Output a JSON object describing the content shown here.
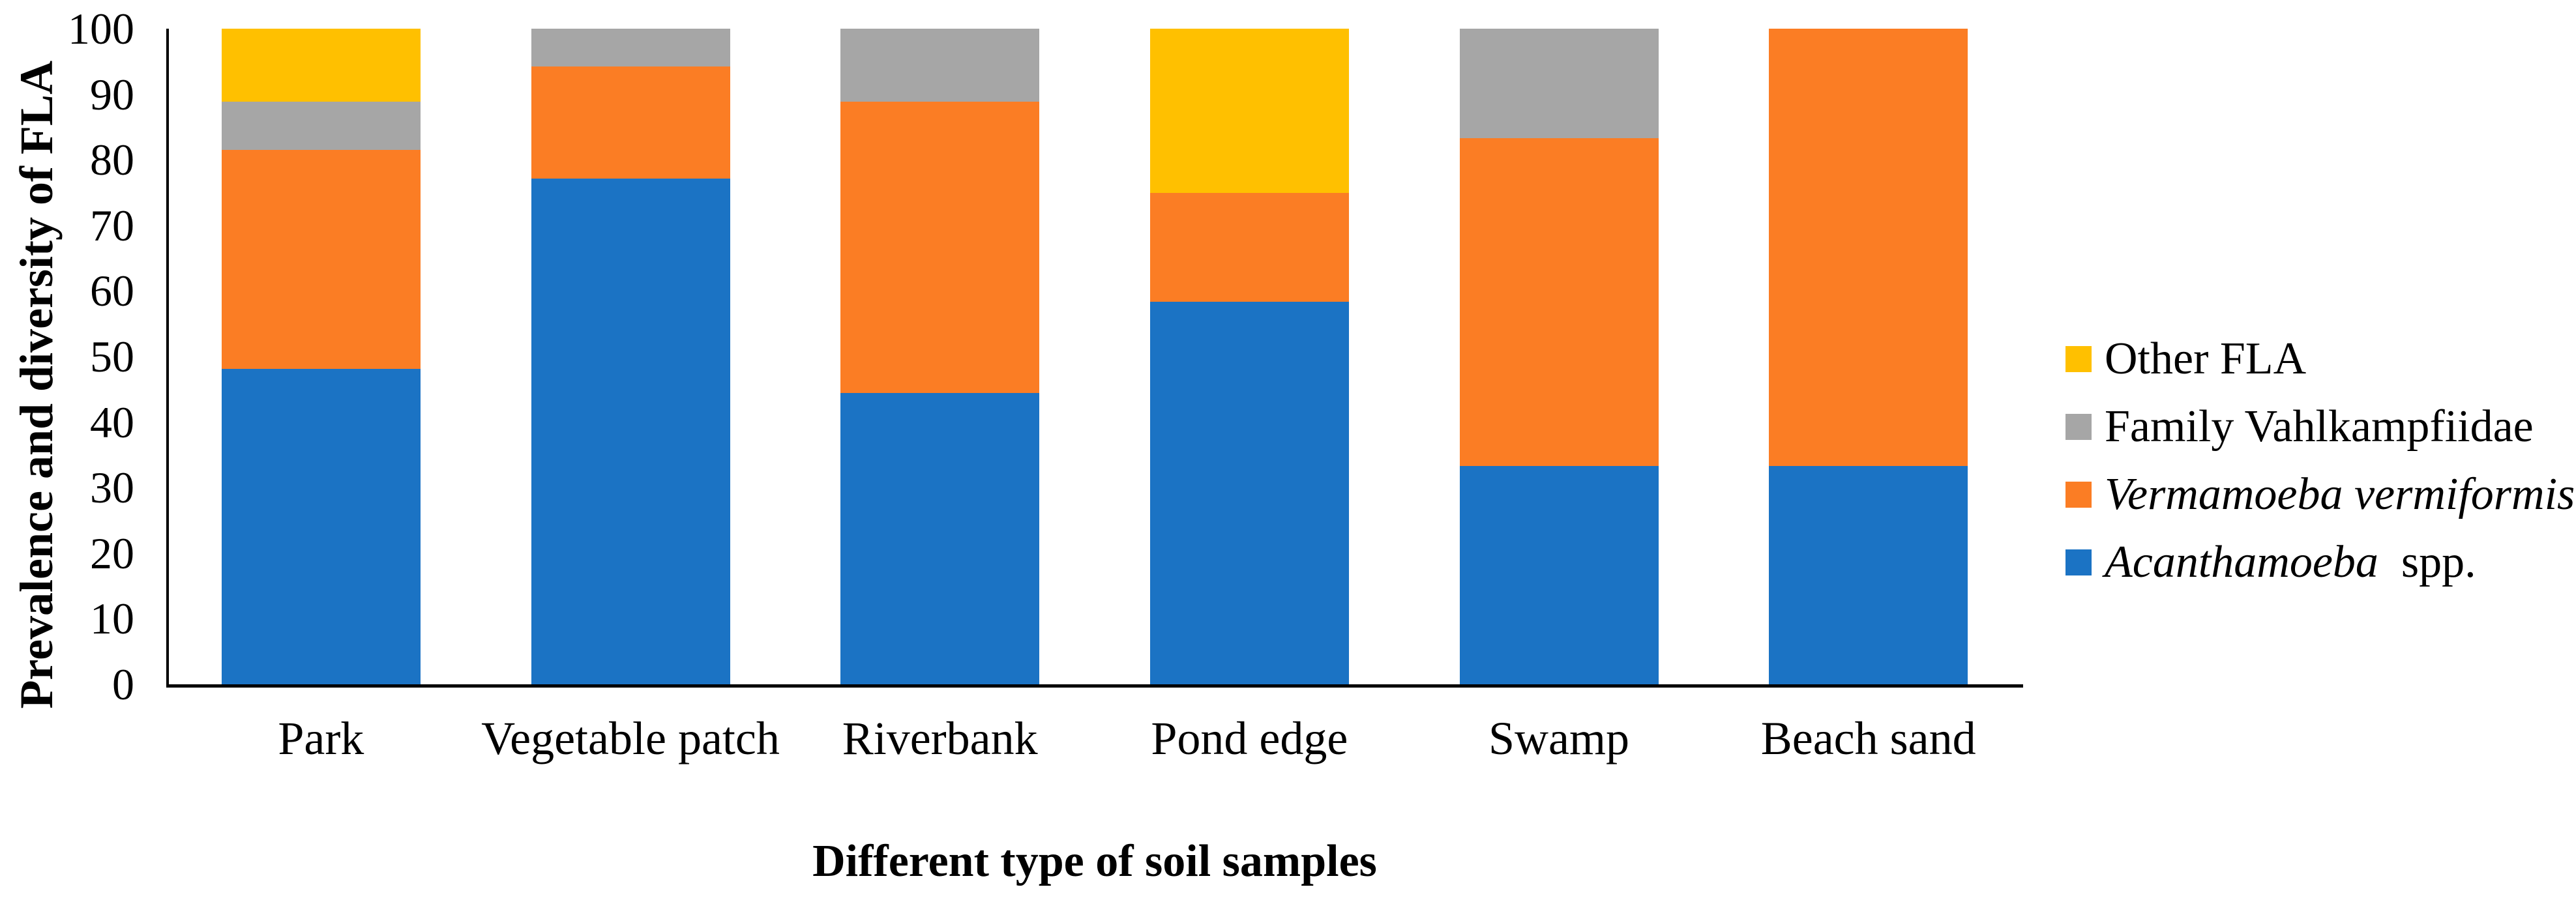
{
  "figure": {
    "background_color": "#ffffff",
    "y_axis": {
      "title": "Prevalence and diversity of FLA",
      "tick_labels": [
        "0",
        "10",
        "20",
        "30",
        "40",
        "50",
        "60",
        "70",
        "80",
        "90",
        "100"
      ],
      "min": 0,
      "max": 100
    },
    "x_axis": {
      "title": "Different type of soil samples",
      "category_labels": [
        "Park",
        "Vegetable patch",
        "Riverbank",
        "Pond edge",
        "Swamp",
        "Beach sand"
      ]
    },
    "legend": {
      "position": "right",
      "items": [
        {
          "key": "other-fla",
          "text_italic": "",
          "text_plain": "Other FLA",
          "color": "#FFC000"
        },
        {
          "key": "family-vahlkampfiidae",
          "text_italic": "",
          "text_plain": "Family Vahlkampfiidae",
          "color": "#A6A6A6"
        },
        {
          "key": "vermamoeba-vermiformis",
          "text_italic": "Vermamoeba vermiformis",
          "text_plain": "",
          "color": "#FB7D24"
        },
        {
          "key": "acanthamoeba-spp",
          "text_italic": "Acanthamoeba",
          "text_plain": "  spp.",
          "color": "#1B73C4"
        }
      ]
    },
    "axis_color": "#000000",
    "text_color": "#000000"
  },
  "chart_data": {
    "type": "bar",
    "stacked": true,
    "orientation": "vertical",
    "title": "",
    "xlabel": "Different type of soil samples",
    "ylabel": "Prevalence and diversity of FLA",
    "ylim": [
      0,
      100
    ],
    "ytick_step": 10,
    "grid": false,
    "legend_position": "right",
    "categories": [
      "Park",
      "Vegetable patch",
      "Riverbank",
      "Pond edge",
      "Swamp",
      "Beach sand"
    ],
    "series": [
      {
        "name": "Acanthamoeba spp.",
        "color": "#1B73C4",
        "values": [
          48.15,
          77.14,
          44.44,
          58.33,
          33.33,
          33.33
        ]
      },
      {
        "name": "Vermamoeba vermiformis",
        "color": "#FB7D24",
        "values": [
          33.33,
          17.14,
          44.45,
          16.67,
          50.0,
          66.67
        ]
      },
      {
        "name": "Family Vahlkampfiidae",
        "color": "#A6A6A6",
        "values": [
          7.41,
          5.72,
          11.11,
          0,
          16.67,
          0
        ]
      },
      {
        "name": "Other FLA",
        "color": "#FFC000",
        "values": [
          11.11,
          0,
          0,
          25.0,
          0,
          0
        ]
      }
    ]
  }
}
